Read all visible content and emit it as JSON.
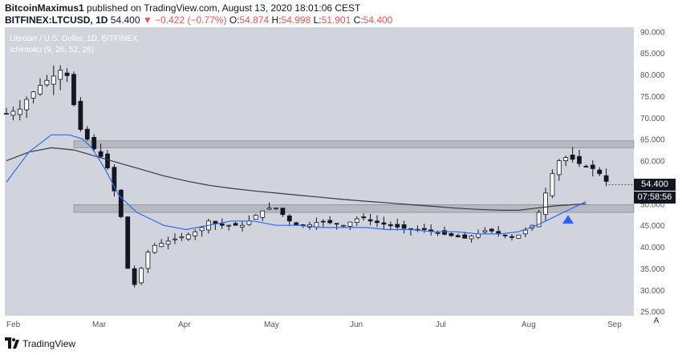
{
  "header": {
    "author": "BitcoinMaximus1",
    "published": "published on TradingView.com, August 13, 2020 18:01:06 CEST",
    "symbol": "BITFINEX:LTCUSD, 1D",
    "last": "54.400",
    "change": "−0.422 (−0.77%)",
    "o_label": "O:",
    "o_value": "54.874",
    "h_label": "H:",
    "h_value": "54.998",
    "l_label": "L:",
    "l_value": "51.901",
    "c_label": "C:",
    "c_value": "54.400"
  },
  "legend": {
    "title": "Litecoin / U.S. Dollar, 1D, BITFINEX",
    "indicator": "Ichimoku (9, 26, 52, 26)"
  },
  "price_tags": {
    "last": "54.400",
    "countdown": "07:58:56"
  },
  "footer": {
    "brand": "TradingView",
    "auto_button": "A"
  },
  "colors": {
    "background": "#d1d4dc",
    "blue_line": "#2d6bef",
    "dark_line": "#363a45",
    "zone": "#9598a1",
    "triangle": "#2962ff"
  },
  "chart_data": {
    "type": "candlestick",
    "ylim": [
      24,
      91
    ],
    "y_ticks": [
      "90.000",
      "85.000",
      "80.000",
      "75.000",
      "70.000",
      "65.000",
      "60.000",
      "55.000",
      "50.000",
      "45.000",
      "40.000",
      "35.000",
      "30.000",
      "25.000"
    ],
    "x_ticks": [
      "Feb",
      "Mar",
      "Apr",
      "May",
      "Jun",
      "Jul",
      "Aug",
      "Sep"
    ],
    "close_path": [
      [
        0,
        71
      ],
      [
        6,
        72
      ],
      [
        10,
        75
      ],
      [
        16,
        78
      ],
      [
        22,
        80
      ],
      [
        26,
        82
      ],
      [
        30,
        73
      ],
      [
        32,
        68
      ],
      [
        36,
        65
      ],
      [
        40,
        62
      ],
      [
        44,
        60
      ],
      [
        47,
        55
      ],
      [
        50,
        49
      ],
      [
        52,
        45
      ],
      [
        54,
        35
      ],
      [
        56,
        30
      ],
      [
        60,
        35
      ],
      [
        64,
        40
      ],
      [
        70,
        41
      ],
      [
        76,
        42
      ],
      [
        82,
        43
      ],
      [
        86,
        44
      ],
      [
        90,
        46
      ],
      [
        95,
        45
      ],
      [
        100,
        45
      ],
      [
        106,
        45
      ],
      [
        110,
        47
      ],
      [
        116,
        49
      ],
      [
        120,
        49
      ],
      [
        124,
        47
      ],
      [
        128,
        45
      ],
      [
        134,
        45
      ],
      [
        140,
        46
      ],
      [
        150,
        45
      ],
      [
        158,
        47
      ],
      [
        162,
        46
      ],
      [
        170,
        45
      ],
      [
        180,
        44
      ],
      [
        186,
        44
      ],
      [
        194,
        43
      ],
      [
        204,
        42
      ],
      [
        210,
        43
      ],
      [
        214,
        44
      ],
      [
        220,
        43
      ],
      [
        226,
        42
      ],
      [
        234,
        45
      ],
      [
        238,
        49
      ],
      [
        242,
        56
      ],
      [
        246,
        60
      ],
      [
        250,
        61
      ],
      [
        256,
        59
      ],
      [
        262,
        58
      ],
      [
        266,
        56
      ],
      [
        268,
        54.4
      ]
    ],
    "resistance_zone": [
      63,
      64.6
    ],
    "support_zone": [
      48,
      49.8
    ],
    "tenkan_line": [
      [
        0,
        55
      ],
      [
        10,
        62
      ],
      [
        20,
        66
      ],
      [
        28,
        66
      ],
      [
        34,
        65
      ],
      [
        38,
        63
      ],
      [
        44,
        58
      ],
      [
        50,
        52
      ],
      [
        58,
        48
      ],
      [
        70,
        45
      ],
      [
        80,
        44
      ],
      [
        90,
        45
      ],
      [
        100,
        46
      ],
      [
        110,
        46
      ],
      [
        120,
        45
      ],
      [
        130,
        45
      ],
      [
        140,
        44.5
      ],
      [
        150,
        44.5
      ],
      [
        160,
        44.5
      ],
      [
        170,
        44
      ],
      [
        180,
        44
      ],
      [
        190,
        43.5
      ],
      [
        200,
        43.5
      ],
      [
        210,
        43
      ],
      [
        220,
        43
      ],
      [
        228,
        43.5
      ],
      [
        236,
        45
      ],
      [
        244,
        47
      ],
      [
        252,
        49
      ],
      [
        258,
        50.5
      ]
    ],
    "kijun_line": [
      [
        0,
        60
      ],
      [
        10,
        62
      ],
      [
        20,
        63
      ],
      [
        30,
        62.5
      ],
      [
        40,
        61
      ],
      [
        50,
        59.5
      ],
      [
        60,
        58
      ],
      [
        70,
        56.5
      ],
      [
        80,
        55.3
      ],
      [
        90,
        54.3
      ],
      [
        100,
        53.6
      ],
      [
        110,
        53
      ],
      [
        120,
        52.5
      ],
      [
        130,
        52
      ],
      [
        140,
        51.5
      ],
      [
        150,
        51
      ],
      [
        160,
        50.6
      ],
      [
        170,
        50.2
      ],
      [
        180,
        49.8
      ],
      [
        190,
        49.4
      ],
      [
        200,
        49
      ],
      [
        210,
        48.7
      ],
      [
        220,
        48.5
      ],
      [
        228,
        48.5
      ],
      [
        236,
        49
      ],
      [
        244,
        49.5
      ],
      [
        252,
        49.8
      ],
      [
        258,
        50
      ]
    ],
    "marker": {
      "type": "triangle-up",
      "x": 250,
      "y": 46.5
    },
    "last_price": 54.4
  }
}
